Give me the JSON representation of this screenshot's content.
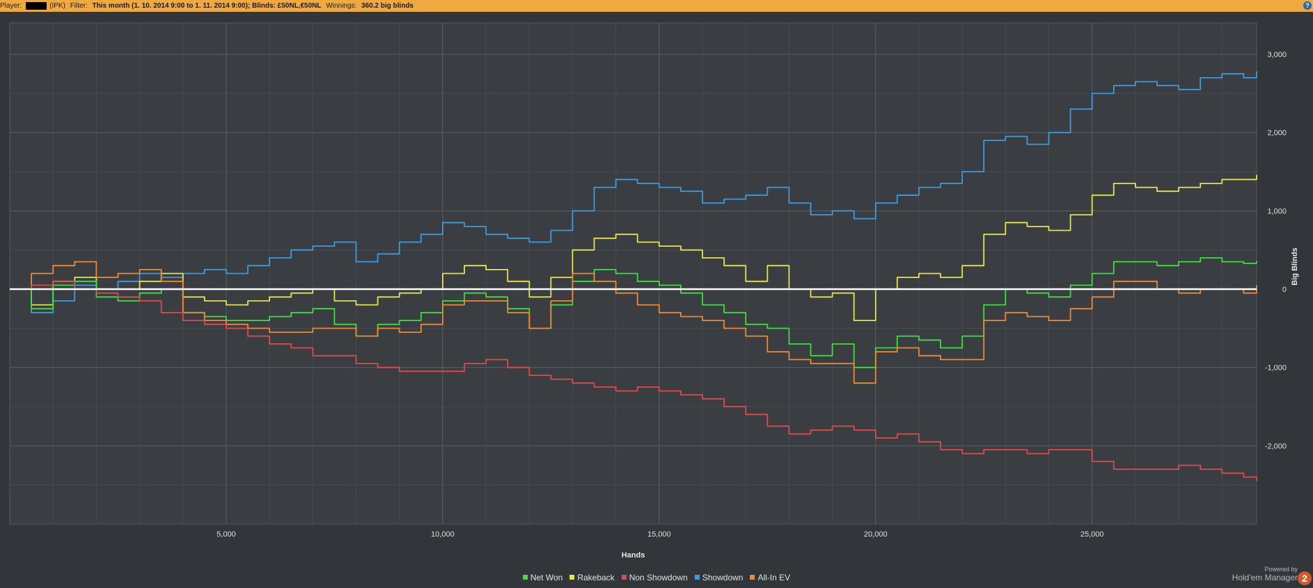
{
  "header": {
    "player_label": "Player:",
    "player_suffix": "(IPK)",
    "filter_label": "Filter:",
    "filter_value": "This month (1. 10. 2014 9:00 to 1. 11. 2014 9:00); Blinds: £50NL,€50NL",
    "winnings_label": "Winnings:",
    "winnings_value": "360.2 big blinds",
    "help_icon": "?"
  },
  "branding": {
    "powered": "Powered by",
    "name": "Hold'em Manager",
    "badge": "2"
  },
  "chart_data": {
    "type": "line",
    "xlabel": "Hands",
    "ylabel": "Big Blinds",
    "xlim": [
      0,
      28800
    ],
    "ylim": [
      -3000,
      3400
    ],
    "x_ticks": [
      5000,
      10000,
      15000,
      20000,
      25000
    ],
    "x_tick_labels": [
      "5,000",
      "10,000",
      "15,000",
      "20,000",
      "25,000"
    ],
    "y_ticks": [
      3000,
      2000,
      1000,
      0,
      -1000,
      -2000
    ],
    "y_tick_labels": [
      "3,000",
      "2,000",
      "1,000",
      "0",
      "-1,000",
      "-2,000"
    ],
    "grid": true,
    "legend_position": "bottom-center",
    "series": [
      {
        "name": "Showdown",
        "color": "#3d9be0",
        "x": [
          0,
          500,
          1000,
          1500,
          2000,
          2500,
          3000,
          3500,
          4000,
          4500,
          5000,
          5500,
          6000,
          6500,
          7000,
          7500,
          8000,
          8500,
          9000,
          9500,
          10000,
          10500,
          11000,
          11500,
          12000,
          12500,
          13000,
          13500,
          14000,
          14500,
          15000,
          15500,
          16000,
          16500,
          17000,
          17500,
          18000,
          18500,
          19000,
          19500,
          20000,
          20500,
          21000,
          21500,
          22000,
          22500,
          23000,
          23500,
          24000,
          24500,
          25000,
          25500,
          26000,
          26500,
          27000,
          27500,
          28000,
          28500,
          28800
        ],
        "values": [
          0,
          -300,
          -150,
          50,
          0,
          100,
          200,
          150,
          200,
          250,
          200,
          300,
          400,
          500,
          550,
          600,
          350,
          450,
          600,
          700,
          850,
          800,
          700,
          650,
          600,
          750,
          1000,
          1300,
          1400,
          1350,
          1300,
          1250,
          1100,
          1150,
          1200,
          1300,
          1100,
          950,
          1000,
          900,
          1100,
          1200,
          1300,
          1350,
          1500,
          1900,
          1950,
          1850,
          2000,
          2300,
          2500,
          2600,
          2650,
          2600,
          2550,
          2700,
          2750,
          2700,
          2780
        ]
      },
      {
        "name": "Rakeback",
        "color": "#e5e54a",
        "x": [
          0,
          500,
          1000,
          1500,
          2000,
          2500,
          3000,
          3500,
          4000,
          4500,
          5000,
          5500,
          6000,
          6500,
          7000,
          7500,
          8000,
          8500,
          9000,
          9500,
          10000,
          10500,
          11000,
          11500,
          12000,
          12500,
          13000,
          13500,
          14000,
          14500,
          15000,
          15500,
          16000,
          16500,
          17000,
          17500,
          18000,
          18500,
          19000,
          19500,
          20000,
          20500,
          21000,
          21500,
          22000,
          22500,
          23000,
          23500,
          24000,
          24500,
          25000,
          25500,
          26000,
          26500,
          27000,
          27500,
          28000,
          28500,
          28800
        ],
        "values": [
          0,
          -200,
          100,
          150,
          0,
          0,
          100,
          200,
          -100,
          -150,
          -200,
          -150,
          -100,
          -50,
          0,
          -150,
          -200,
          -100,
          -50,
          0,
          200,
          300,
          250,
          100,
          -100,
          150,
          500,
          650,
          700,
          600,
          550,
          500,
          400,
          300,
          100,
          300,
          0,
          -100,
          -50,
          -400,
          0,
          150,
          200,
          150,
          300,
          700,
          850,
          800,
          750,
          950,
          1200,
          1350,
          1300,
          1250,
          1300,
          1350,
          1400,
          1400,
          1460
        ]
      },
      {
        "name": "Net Won",
        "color": "#3de03d",
        "x": [
          0,
          500,
          1000,
          1500,
          2000,
          2500,
          3000,
          3500,
          4000,
          4500,
          5000,
          5500,
          6000,
          6500,
          7000,
          7500,
          8000,
          8500,
          9000,
          9500,
          10000,
          10500,
          11000,
          11500,
          12000,
          12500,
          13000,
          13500,
          14000,
          14500,
          15000,
          15500,
          16000,
          16500,
          17000,
          17500,
          18000,
          18500,
          19000,
          19500,
          20000,
          20500,
          21000,
          21500,
          22000,
          22500,
          23000,
          23500,
          24000,
          24500,
          25000,
          25500,
          26000,
          26500,
          27000,
          27500,
          28000,
          28500,
          28800
        ],
        "values": [
          0,
          -250,
          50,
          100,
          -100,
          -150,
          -50,
          0,
          -300,
          -350,
          -400,
          -400,
          -350,
          -300,
          -250,
          -450,
          -600,
          -450,
          -400,
          -300,
          -150,
          -50,
          -100,
          -250,
          -500,
          -200,
          100,
          250,
          200,
          100,
          50,
          -50,
          -200,
          -300,
          -450,
          -500,
          -700,
          -850,
          -700,
          -1000,
          -750,
          -600,
          -650,
          -750,
          -600,
          -200,
          0,
          -50,
          -100,
          50,
          200,
          350,
          350,
          300,
          350,
          400,
          350,
          330,
          360
        ]
      },
      {
        "name": "All-In EV",
        "color": "#f08a30",
        "x": [
          0,
          500,
          1000,
          1500,
          2000,
          2500,
          3000,
          3500,
          4000,
          4500,
          5000,
          5500,
          6000,
          6500,
          7000,
          7500,
          8000,
          8500,
          9000,
          9500,
          10000,
          10500,
          11000,
          11500,
          12000,
          12500,
          13000,
          13500,
          14000,
          14500,
          15000,
          15500,
          16000,
          16500,
          17000,
          17500,
          18000,
          18500,
          19000,
          19500,
          20000,
          20500,
          21000,
          21500,
          22000,
          22500,
          23000,
          23500,
          24000,
          24500,
          25000,
          25500,
          26000,
          26500,
          27000,
          27500,
          28000,
          28500,
          28800
        ],
        "values": [
          0,
          200,
          300,
          350,
          150,
          200,
          250,
          100,
          -300,
          -400,
          -450,
          -500,
          -550,
          -550,
          -500,
          -500,
          -600,
          -500,
          -550,
          -450,
          -200,
          -150,
          -150,
          -300,
          -500,
          -150,
          200,
          100,
          -50,
          -200,
          -300,
          -350,
          -400,
          -500,
          -600,
          -800,
          -900,
          -950,
          -950,
          -1200,
          -800,
          -750,
          -850,
          -900,
          -900,
          -400,
          -300,
          -350,
          -400,
          -250,
          -100,
          100,
          100,
          0,
          -50,
          0,
          0,
          -50,
          50
        ]
      },
      {
        "name": "Non Showdown",
        "color": "#e04a4a",
        "x": [
          0,
          500,
          1000,
          1500,
          2000,
          2500,
          3000,
          3500,
          4000,
          4500,
          5000,
          5500,
          6000,
          6500,
          7000,
          7500,
          8000,
          8500,
          9000,
          9500,
          10000,
          10500,
          11000,
          11500,
          12000,
          12500,
          13000,
          13500,
          14000,
          14500,
          15000,
          15500,
          16000,
          16500,
          17000,
          17500,
          18000,
          18500,
          19000,
          19500,
          20000,
          20500,
          21000,
          21500,
          22000,
          22500,
          23000,
          23500,
          24000,
          24500,
          25000,
          25500,
          26000,
          26500,
          27000,
          27500,
          28000,
          28500,
          28800
        ],
        "values": [
          0,
          50,
          100,
          0,
          -50,
          -100,
          -150,
          -300,
          -400,
          -450,
          -500,
          -600,
          -700,
          -750,
          -850,
          -850,
          -950,
          -1000,
          -1050,
          -1050,
          -1050,
          -950,
          -900,
          -1000,
          -1100,
          -1150,
          -1200,
          -1250,
          -1300,
          -1250,
          -1300,
          -1350,
          -1400,
          -1500,
          -1600,
          -1750,
          -1850,
          -1800,
          -1750,
          -1800,
          -1900,
          -1850,
          -1950,
          -2050,
          -2100,
          -2050,
          -2050,
          -2100,
          -2050,
          -2050,
          -2200,
          -2300,
          -2300,
          -2300,
          -2250,
          -2300,
          -2350,
          -2400,
          -2450
        ]
      }
    ],
    "legend_order": [
      "Net Won",
      "Rakeback",
      "Non Showdown",
      "Showdown",
      "All-In EV"
    ]
  }
}
